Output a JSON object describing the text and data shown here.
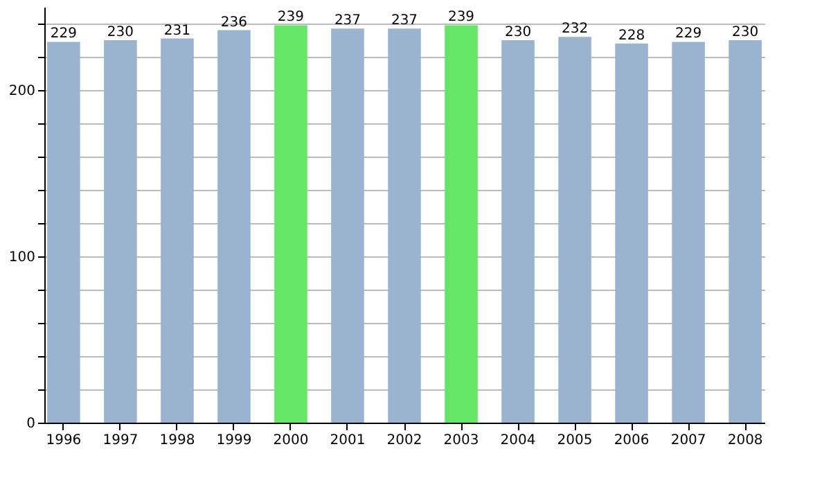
{
  "chart_data": {
    "type": "bar",
    "categories": [
      "1996",
      "1997",
      "1998",
      "1999",
      "2000",
      "2001",
      "2002",
      "2003",
      "2004",
      "2005",
      "2006",
      "2007",
      "2008"
    ],
    "values": [
      229,
      230,
      231,
      236,
      239,
      237,
      237,
      239,
      230,
      232,
      228,
      229,
      230
    ],
    "colors": [
      "#9ab4cf",
      "#9ab4cf",
      "#9ab4cf",
      "#9ab4cf",
      "#66e666",
      "#9ab4cf",
      "#9ab4cf",
      "#66e666",
      "#9ab4cf",
      "#9ab4cf",
      "#9ab4cf",
      "#9ab4cf",
      "#9ab4cf"
    ],
    "ylim": [
      0,
      250
    ],
    "yticks": [
      0,
      {
        "value": 20,
        "label": null
      },
      {
        "value": 40,
        "label": null
      },
      {
        "value": 60,
        "label": null
      },
      {
        "value": 80,
        "label": null
      },
      100,
      {
        "value": 120,
        "label": null
      },
      {
        "value": 140,
        "label": null
      },
      {
        "value": 160,
        "label": null
      },
      {
        "value": 180,
        "label": null
      },
      200,
      {
        "value": 220,
        "label": null
      },
      {
        "value": 240,
        "label": null
      }
    ],
    "grid": "y",
    "data_labels": true
  }
}
